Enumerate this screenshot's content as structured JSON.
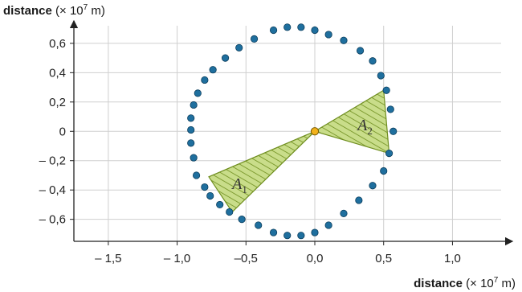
{
  "chart_data": {
    "type": "scatter",
    "x_axis": {
      "label_bold": "distance",
      "label_prefix": " (× 10",
      "label_exp": "7",
      "label_suffix": " m)",
      "range": [
        -1.75,
        1.4
      ],
      "ticks": [
        -1.5,
        -1.0,
        -0.5,
        0.0,
        0.5,
        1.0
      ],
      "tick_labels": [
        "– 1,5",
        "– 1,0",
        "–0,5",
        "0,0",
        "0,5",
        "1,0"
      ]
    },
    "y_axis": {
      "label_bold": "distance",
      "label_prefix": " (× 10",
      "label_exp": "7",
      "label_suffix": " m)",
      "range": [
        -0.75,
        0.72
      ],
      "ticks": [
        -0.6,
        -0.4,
        -0.2,
        0.0,
        0.2,
        0.4,
        0.6
      ],
      "tick_labels": [
        "– 0,6",
        "– 0,4",
        "– 0,2",
        "0",
        "0,2",
        "0,4",
        "0,6"
      ]
    },
    "grid": true,
    "orbit_points": [
      [
        -0.3,
        0.69
      ],
      [
        -0.2,
        0.71
      ],
      [
        -0.1,
        0.71
      ],
      [
        0.0,
        0.69
      ],
      [
        0.1,
        0.66
      ],
      [
        0.21,
        0.62
      ],
      [
        0.33,
        0.55
      ],
      [
        0.42,
        0.48
      ],
      [
        0.48,
        0.38
      ],
      [
        0.52,
        0.28
      ],
      [
        0.55,
        0.15
      ],
      [
        0.57,
        0.0
      ],
      [
        0.54,
        -0.15
      ],
      [
        0.5,
        -0.27
      ],
      [
        0.42,
        -0.37
      ],
      [
        0.32,
        -0.47
      ],
      [
        0.21,
        -0.56
      ],
      [
        0.1,
        -0.64
      ],
      [
        0.0,
        -0.69
      ],
      [
        -0.1,
        -0.71
      ],
      [
        -0.2,
        -0.71
      ],
      [
        -0.3,
        -0.69
      ],
      [
        -0.41,
        -0.64
      ],
      [
        -0.53,
        -0.6
      ],
      [
        -0.62,
        -0.55
      ],
      [
        -0.69,
        -0.5
      ],
      [
        -0.76,
        -0.44
      ],
      [
        -0.8,
        -0.38
      ],
      [
        -0.86,
        -0.3
      ],
      [
        -0.88,
        -0.18
      ],
      [
        -0.9,
        -0.08
      ],
      [
        -0.9,
        0.01
      ],
      [
        -0.9,
        0.09
      ],
      [
        -0.88,
        0.18
      ],
      [
        -0.85,
        0.26
      ],
      [
        -0.8,
        0.35
      ],
      [
        -0.74,
        0.42
      ],
      [
        -0.65,
        0.5
      ],
      [
        -0.55,
        0.57
      ],
      [
        -0.44,
        0.63
      ]
    ],
    "focus": [
      0.0,
      0.0
    ],
    "areas": [
      {
        "label": "A",
        "subscript": "1",
        "vertices": [
          [
            0.0,
            0.0
          ],
          [
            -0.77,
            -0.31
          ],
          [
            -0.6,
            -0.55
          ]
        ],
        "label_pos": [
          -0.6,
          -0.36
        ]
      },
      {
        "label": "A",
        "subscript": "2",
        "vertices": [
          [
            0.0,
            0.0
          ],
          [
            0.5,
            0.28
          ],
          [
            0.54,
            -0.15
          ]
        ],
        "label_pos": [
          0.31,
          0.04
        ]
      }
    ],
    "colors": {
      "orbit_point": "#1f6f9e",
      "orbit_point_stroke": "#0b3d5c",
      "focus": "#f2b21b",
      "area_fill": "#c9dd8a",
      "area_hatch": "#6f8e1f",
      "grid": "#cfcfcf",
      "axis": "#222222"
    }
  }
}
